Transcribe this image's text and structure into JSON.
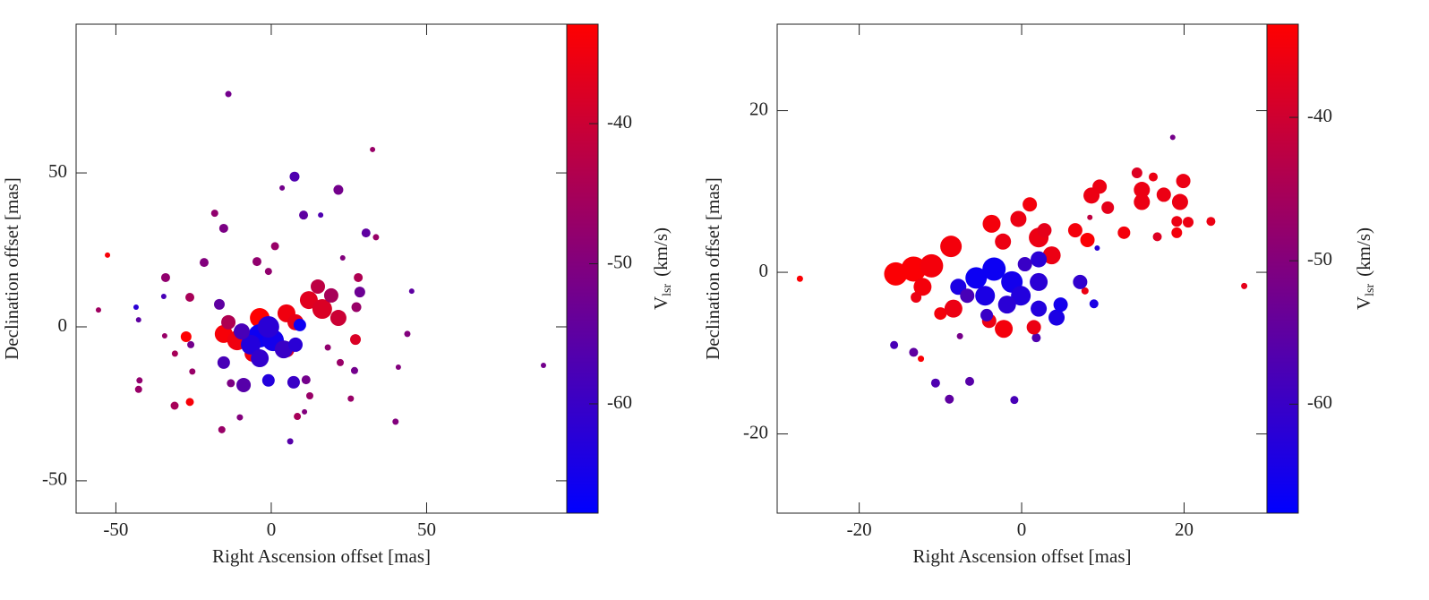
{
  "chart_data": [
    {
      "type": "scatter",
      "xlabel": "Right Ascension offset [mas]",
      "ylabel": "Declination offset [mas]",
      "xlim": [
        -62.8,
        95.1
      ],
      "ylim": [
        -60.5,
        98.3
      ],
      "xticks": [
        -50,
        0,
        50
      ],
      "yticks": [
        -50,
        0,
        50
      ],
      "colorbar": {
        "label_symbol": "V",
        "label_subscript": "lsr",
        "label_unit": "(km/s)",
        "lim": [
          -67.8,
          -32.9
        ],
        "ticks": [
          -60,
          -50,
          -40
        ],
        "colors": [
          "#0000ff",
          "#ff0000"
        ]
      },
      "x": [
        -52.7,
        -55.6,
        -43.5,
        -42.7,
        -42.4,
        -42.7,
        -34,
        -34.6,
        -34.3,
        -31,
        -31.1,
        -27.4,
        -26.2,
        -26.2,
        -25.9,
        -25.4,
        -21.6,
        -18.2,
        -15.3,
        -13.8,
        -15.9,
        -10.1,
        -13,
        -8.9,
        -15.3,
        -16.7,
        -4.6,
        -0.9,
        1.2,
        3.5,
        7.5,
        10.4,
        15.9,
        21.6,
        32.6,
        30.5,
        33.7,
        23,
        28,
        28.5,
        27.4,
        27.1,
        45.2,
        43.8,
        40.9,
        40,
        87.6,
        26.8,
        25.6,
        18.2,
        22.2,
        11.2,
        12.4,
        8.4,
        6.1,
        7.2,
        -0.9,
        10.7,
        -15.3,
        -11,
        -3.7,
        4.9,
        12.1,
        16.4,
        21.6,
        7.8,
        15,
        19.3,
        -6,
        4.9,
        -13.8,
        -3.7,
        0.6,
        -6.6,
        -0.9,
        4,
        7.8,
        -9.5,
        9.2,
        -3.7
      ],
      "y": [
        23.3,
        5.5,
        6.4,
        2.3,
        -17.4,
        -20.3,
        16,
        9.9,
        -2.9,
        -8.7,
        -25.6,
        -3.2,
        -24.4,
        9.6,
        -5.8,
        -14.5,
        20.9,
        36.9,
        32,
        75.6,
        -33.4,
        -29.4,
        -18.3,
        -18.9,
        -11.6,
        7.3,
        21.2,
        18,
        26.2,
        45.1,
        48.8,
        36.3,
        36.3,
        44.5,
        57.6,
        30.5,
        29.1,
        22.4,
        16,
        11.3,
        6.4,
        -4.1,
        11.6,
        -2.3,
        -13.1,
        -30.8,
        -12.5,
        -14.2,
        -23.3,
        -6.7,
        -11.6,
        -17.2,
        -22.4,
        -29.1,
        -37.2,
        -18,
        -17.4,
        -27.6,
        -2.3,
        -4.4,
        2.9,
        4.4,
        8.7,
        5.8,
        2.9,
        1.5,
        13.1,
        10.2,
        -8.7,
        -7.3,
        1.5,
        -2.9,
        -4.4,
        -5.8,
        0,
        -7.3,
        -5.8,
        -1.5,
        0.6,
        -10.2
      ],
      "velocity": [
        -34,
        -46,
        -62,
        -55,
        -48,
        -47,
        -48,
        -58,
        -47,
        -45,
        -45,
        -33,
        -34,
        -45,
        -52,
        -47,
        -50,
        -48,
        -51,
        -52,
        -47,
        -50,
        -51,
        -56,
        -58,
        -55,
        -48,
        -48,
        -47,
        -52,
        -57,
        -55,
        -57,
        -52,
        -47,
        -55,
        -47,
        -50,
        -44,
        -53,
        -47,
        -38,
        -55,
        -50,
        -50,
        -50,
        -52,
        -52,
        -47,
        -48,
        -47,
        -52,
        -47,
        -45,
        -56,
        -60,
        -63,
        -50,
        -34,
        -35,
        -33,
        -35,
        -37,
        -38,
        -40,
        -36,
        -42,
        -45,
        -35,
        -40,
        -44,
        -66,
        -65,
        -63,
        -62,
        -60,
        -62,
        -58,
        -66,
        -61
      ],
      "size": [
        3,
        3,
        3,
        3,
        3.5,
        4,
        5,
        3,
        3,
        3.5,
        4.5,
        6,
        4.5,
        5,
        4,
        3.5,
        5,
        4,
        5,
        3.5,
        4,
        3.5,
        4.5,
        8,
        7,
        6,
        5,
        4,
        4.5,
        3,
        5.5,
        5,
        3,
        5.5,
        3,
        5,
        3.5,
        3,
        5,
        6,
        5.5,
        6,
        3,
        3.5,
        3,
        3.5,
        3,
        4,
        3.5,
        3.5,
        4,
        5,
        4,
        4,
        3.5,
        7,
        7,
        3,
        10,
        11,
        11,
        10,
        10,
        11,
        9,
        9,
        8,
        8,
        9,
        9,
        8,
        13,
        12,
        11,
        12,
        10,
        8,
        9,
        7,
        10
      ]
    },
    {
      "type": "scatter",
      "xlabel": "Right Ascension offset [mas]",
      "ylabel": "Declination offset [mas]",
      "xlim": [
        -30.1,
        30.2
      ],
      "ylim": [
        -29.8,
        30.7
      ],
      "xticks": [
        -20,
        0,
        20
      ],
      "yticks": [
        -20,
        0,
        20
      ],
      "colorbar": {
        "label_symbol": "V",
        "label_subscript": "lsr",
        "label_unit": "(km/s)",
        "lim": [
          -67.6,
          -33.5
        ],
        "ticks": [
          -60,
          -50,
          -40
        ],
        "colors": [
          "#0000ff",
          "#ff0000"
        ]
      },
      "x": [
        -27.3,
        27.4,
        18.6,
        -15.7,
        -13.3,
        -12.4,
        -10.6,
        -8.9,
        -6.4,
        -7.6,
        -0.9,
        1.8,
        7.8,
        8.9,
        9.3,
        7.2,
        -15.5,
        -13.3,
        -11.1,
        -12.2,
        -8.7,
        -10,
        -8.4,
        -13,
        -3.7,
        -0.4,
        1,
        2.1,
        -2.3,
        2.8,
        3.7,
        -2.2,
        -4,
        1.5,
        6.6,
        8.1,
        8.6,
        9.6,
        10.6,
        12.6,
        14.2,
        14.8,
        14.8,
        16.2,
        17.5,
        19.5,
        19.9,
        19.1,
        20.5,
        19.1,
        16.7,
        23.3,
        8.4,
        -5.6,
        -3.4,
        -1.2,
        -4.5,
        -0.1,
        2.1,
        2.1,
        4.3,
        4.8,
        -7.8,
        2.1,
        0.4,
        -1.8,
        -6.7,
        -4.3
      ],
      "y": [
        -0.8,
        -1.7,
        16.7,
        -9,
        -9.9,
        -10.7,
        -13.7,
        -15.7,
        -13.5,
        -7.9,
        -15.8,
        -8.1,
        -2.3,
        -3.9,
        3,
        -1.2,
        -0.2,
        0.4,
        0.8,
        -1.8,
        3.2,
        -5.1,
        -4.5,
        -3.1,
        6,
        6.6,
        8.4,
        4.3,
        3.8,
        5.2,
        2.1,
        -7,
        -6,
        -6.8,
        5.2,
        4,
        9.5,
        10.6,
        8,
        4.9,
        12.3,
        10.2,
        8.7,
        11.8,
        9.6,
        8.7,
        11.3,
        6.3,
        6.2,
        4.9,
        4.4,
        6.3,
        6.8,
        -0.7,
        0.4,
        -1.2,
        -2.9,
        -2.9,
        -1.2,
        -4.5,
        -5.6,
        -4,
        -1.8,
        1.6,
        1,
        -4,
        -2.9,
        -5.3
      ],
      "velocity": [
        -34,
        -37,
        -52,
        -58,
        -55,
        -34,
        -57,
        -55,
        -56,
        -52,
        -58,
        -57,
        -36,
        -64,
        -62,
        -61,
        -34,
        -34,
        -35,
        -35,
        -35,
        -35,
        -36,
        -36,
        -35,
        -36,
        -35,
        -36,
        -36,
        -37,
        -36,
        -35,
        -36,
        -36,
        -35,
        -34,
        -36,
        -36,
        -37,
        -35,
        -38,
        -36,
        -36,
        -36,
        -36,
        -36,
        -36,
        -36,
        -36,
        -35,
        -38,
        -36,
        -42,
        -66,
        -66,
        -65,
        -64,
        -63,
        -62,
        -63,
        -64,
        -65,
        -64,
        -62,
        -60,
        -62,
        -58,
        -60
      ],
      "size": [
        3.5,
        3.5,
        3,
        4.5,
        5,
        3.5,
        5,
        5,
        5,
        3.5,
        4.5,
        5,
        4,
        5,
        3,
        8,
        13,
        14,
        13,
        10,
        12,
        7,
        10,
        6,
        10,
        9,
        8,
        11,
        9,
        8,
        10,
        10,
        8,
        8,
        8,
        8,
        9,
        8,
        7,
        7,
        6,
        9,
        9,
        5,
        8,
        9,
        8,
        6,
        6,
        6,
        5,
        5,
        3,
        12,
        13,
        12,
        11,
        11,
        10,
        9,
        9,
        8,
        9,
        9,
        8,
        10,
        8,
        7
      ]
    }
  ]
}
